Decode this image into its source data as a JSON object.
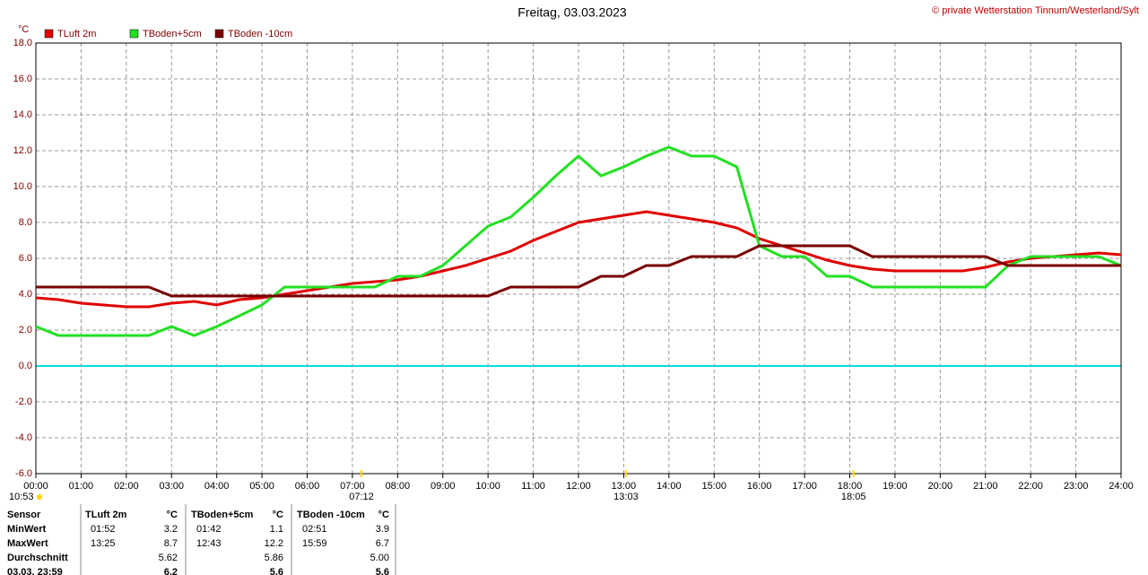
{
  "chart_data": {
    "type": "line",
    "title": "Freitag, 03.03.2023",
    "copyright": "© private Wetterstation Tinnum/Westerland/Sylt",
    "y_unit": "°C",
    "xlim": [
      0,
      24
    ],
    "xticks": [
      {
        "value": 0,
        "label": "00:00"
      },
      {
        "value": 1,
        "label": "01:00"
      },
      {
        "value": 2,
        "label": "02:00"
      },
      {
        "value": 3,
        "label": "03:00"
      },
      {
        "value": 4,
        "label": "04:00"
      },
      {
        "value": 5,
        "label": "05:00"
      },
      {
        "value": 6,
        "label": "06:00"
      },
      {
        "value": 7,
        "label": "07:00"
      },
      {
        "value": 8,
        "label": "08:00"
      },
      {
        "value": 9,
        "label": "09:00"
      },
      {
        "value": 10,
        "label": "10:00"
      },
      {
        "value": 11,
        "label": "11:00"
      },
      {
        "value": 12,
        "label": "12:00"
      },
      {
        "value": 13,
        "label": "13:00"
      },
      {
        "value": 14,
        "label": "14:00"
      },
      {
        "value": 15,
        "label": "15:00"
      },
      {
        "value": 16,
        "label": "16:00"
      },
      {
        "value": 17,
        "label": "17:00"
      },
      {
        "value": 18,
        "label": "18:00"
      },
      {
        "value": 19,
        "label": "19:00"
      },
      {
        "value": 20,
        "label": "20:00"
      },
      {
        "value": 21,
        "label": "21:00"
      },
      {
        "value": 22,
        "label": "22:00"
      },
      {
        "value": 23,
        "label": "23:00"
      },
      {
        "value": 24,
        "label": "24:00"
      }
    ],
    "ylim": [
      -6,
      18
    ],
    "yticks": [
      {
        "value": -6,
        "label": "-6.0"
      },
      {
        "value": -4,
        "label": "-4.0"
      },
      {
        "value": -2,
        "label": "-2.0"
      },
      {
        "value": 0,
        "label": "0.0"
      },
      {
        "value": 2,
        "label": "2.0"
      },
      {
        "value": 4,
        "label": "4.0"
      },
      {
        "value": 6,
        "label": "6.0"
      },
      {
        "value": 8,
        "label": "8.0"
      },
      {
        "value": 10,
        "label": "10.0"
      },
      {
        "value": 12,
        "label": "12.0"
      },
      {
        "value": 14,
        "label": "14.0"
      },
      {
        "value": 16,
        "label": "16.0"
      },
      {
        "value": 18,
        "label": "18.0"
      }
    ],
    "grid": true,
    "zero_line_color": "#00e0e0",
    "x": [
      0,
      0.5,
      1,
      1.5,
      2,
      2.5,
      3,
      3.5,
      4,
      4.5,
      5,
      5.5,
      6,
      6.5,
      7,
      7.5,
      8,
      8.5,
      9,
      9.5,
      10,
      10.5,
      11,
      11.5,
      12,
      12.5,
      13,
      13.5,
      14,
      14.5,
      15,
      15.5,
      16,
      16.5,
      17,
      17.5,
      18,
      18.5,
      19,
      19.5,
      20,
      20.5,
      21,
      21.5,
      22,
      22.5,
      23,
      23.5,
      24
    ],
    "series": [
      {
        "name": "TLuft 2m",
        "color": "#e00000",
        "values": [
          3.8,
          3.7,
          3.5,
          3.4,
          3.3,
          3.3,
          3.5,
          3.6,
          3.4,
          3.7,
          3.8,
          4.0,
          4.2,
          4.4,
          4.6,
          4.7,
          4.8,
          5.0,
          5.3,
          5.6,
          6.0,
          6.4,
          7.0,
          7.5,
          8.0,
          8.2,
          8.4,
          8.6,
          8.4,
          8.2,
          8.0,
          7.7,
          7.1,
          6.7,
          6.3,
          5.9,
          5.6,
          5.4,
          5.3,
          5.3,
          5.3,
          5.3,
          5.5,
          5.8,
          6.0,
          6.1,
          6.2,
          6.3,
          6.2
        ]
      },
      {
        "name": "TBoden+5cm",
        "color": "#22e022",
        "values": [
          2.2,
          1.7,
          1.7,
          1.7,
          1.7,
          1.7,
          2.2,
          1.7,
          2.2,
          2.8,
          3.4,
          4.4,
          4.4,
          4.4,
          4.4,
          4.4,
          5.0,
          5.0,
          5.6,
          6.7,
          7.8,
          8.3,
          9.4,
          10.6,
          11.7,
          10.6,
          11.1,
          11.7,
          12.2,
          11.7,
          11.7,
          11.1,
          6.7,
          6.1,
          6.1,
          5.0,
          5.0,
          4.4,
          4.4,
          4.4,
          4.4,
          4.4,
          4.4,
          5.6,
          6.1,
          6.1,
          6.1,
          6.1,
          5.6
        ]
      },
      {
        "name": "TBoden -10cm",
        "color": "#7a0000",
        "values": [
          4.4,
          4.4,
          4.4,
          4.4,
          4.4,
          4.4,
          3.9,
          3.9,
          3.9,
          3.9,
          3.9,
          3.9,
          3.9,
          3.9,
          3.9,
          3.9,
          3.9,
          3.9,
          3.9,
          3.9,
          3.9,
          4.4,
          4.4,
          4.4,
          4.4,
          5.0,
          5.0,
          5.6,
          5.6,
          6.1,
          6.1,
          6.1,
          6.7,
          6.7,
          6.7,
          6.7,
          6.7,
          6.1,
          6.1,
          6.1,
          6.1,
          6.1,
          6.1,
          5.6,
          5.6,
          5.6,
          5.6,
          5.6,
          5.6
        ]
      }
    ],
    "moon_label": "10:53",
    "events": [
      {
        "value": 7.2,
        "label": "07:12"
      },
      {
        "value": 13.05,
        "label": "13:03"
      },
      {
        "value": 18.083,
        "label": "18:05"
      }
    ]
  },
  "table": {
    "header": [
      "Sensor",
      "TLuft 2m",
      "°C",
      "TBoden+5cm",
      "°C",
      "TBoden -10cm",
      "°C"
    ],
    "rows": [
      [
        "MinWert",
        "01:52",
        "3.2",
        "01:42",
        "1.1",
        "02:51",
        "3.9"
      ],
      [
        "MaxWert",
        "13:25",
        "8.7",
        "12:43",
        "12.2",
        "15:59",
        "6.7"
      ],
      [
        "Durchschnitt",
        null,
        "5.62",
        null,
        "5.86",
        null,
        "5.00"
      ],
      [
        "03.03. 23:59",
        null,
        "6.2",
        null,
        "5.6",
        null,
        "5.6"
      ]
    ]
  }
}
